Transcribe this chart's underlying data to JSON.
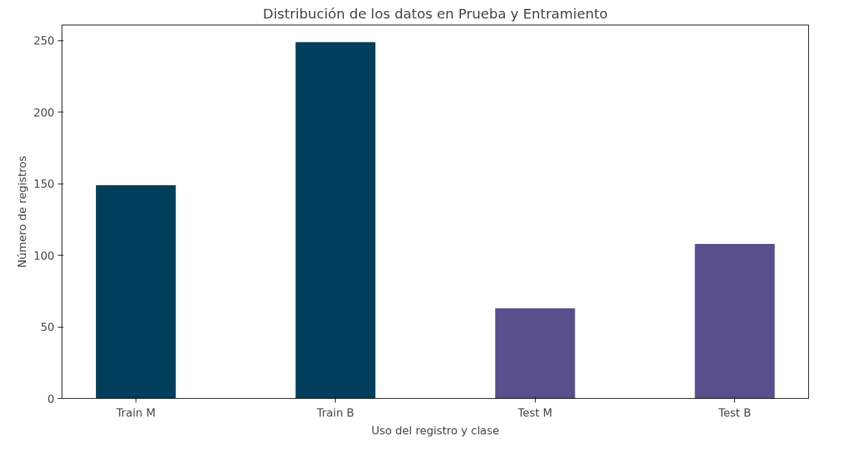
{
  "chart_data": {
    "type": "bar",
    "title": "Distribución de los datos en Prueba y Entramiento",
    "xlabel": "Uso del registro y clase",
    "ylabel": "Número de registros",
    "categories": [
      "Train M",
      "Train B",
      "Test M",
      "Test B"
    ],
    "values": [
      149,
      249,
      63,
      108
    ],
    "colors": [
      "#003f5c",
      "#003f5c",
      "#58508d",
      "#58508d"
    ],
    "ylim": [
      0,
      261
    ],
    "yticks": [
      0,
      50,
      100,
      150,
      200,
      250
    ],
    "grid": false
  }
}
